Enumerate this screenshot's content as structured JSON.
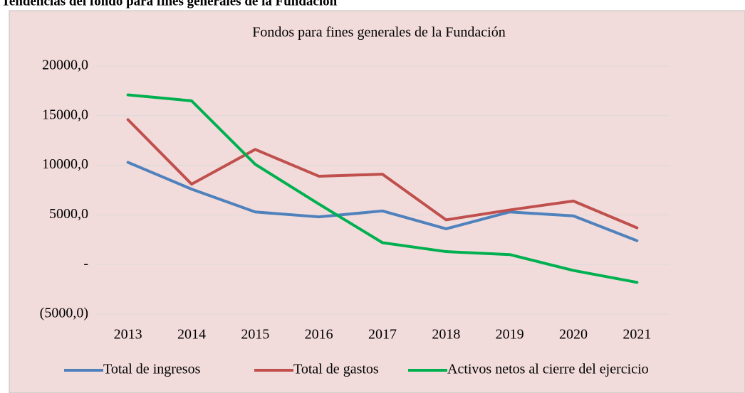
{
  "heading": "Tendencias del fondo para fines generales de la Fundación",
  "chart_data": {
    "type": "line",
    "title": "Fondos para fines generales de la Fundación",
    "categories": [
      "2013",
      "2014",
      "2015",
      "2016",
      "2017",
      "2018",
      "2019",
      "2020",
      "2021"
    ],
    "series": [
      {
        "name": "Total de ingresos",
        "color": "#4f81bd",
        "values": [
          10300,
          7600,
          5300,
          4800,
          5400,
          3600,
          5300,
          4900,
          2400
        ]
      },
      {
        "name": "Total de gastos",
        "color": "#c0504d",
        "values": [
          14600,
          8100,
          11600,
          8900,
          9100,
          4500,
          5500,
          6400,
          3700
        ]
      },
      {
        "name": "Activos netos al cierre del ejercicio",
        "color": "#00b050",
        "values": [
          17100,
          16500,
          10100,
          6100,
          2200,
          1300,
          1000,
          -600,
          -1800
        ]
      }
    ],
    "ylim": [
      -5000,
      20000
    ],
    "yticks": [
      {
        "value": -5000,
        "label": "(5000,0)"
      },
      {
        "value": 0,
        "label": "-"
      },
      {
        "value": 5000,
        "label": "5000,0"
      },
      {
        "value": 10000,
        "label": "10000,0"
      },
      {
        "value": 15000,
        "label": "15000,0"
      },
      {
        "value": 20000,
        "label": "20000,0"
      }
    ],
    "grid": true,
    "legend": "bottom",
    "background": "#f2dcdb"
  }
}
